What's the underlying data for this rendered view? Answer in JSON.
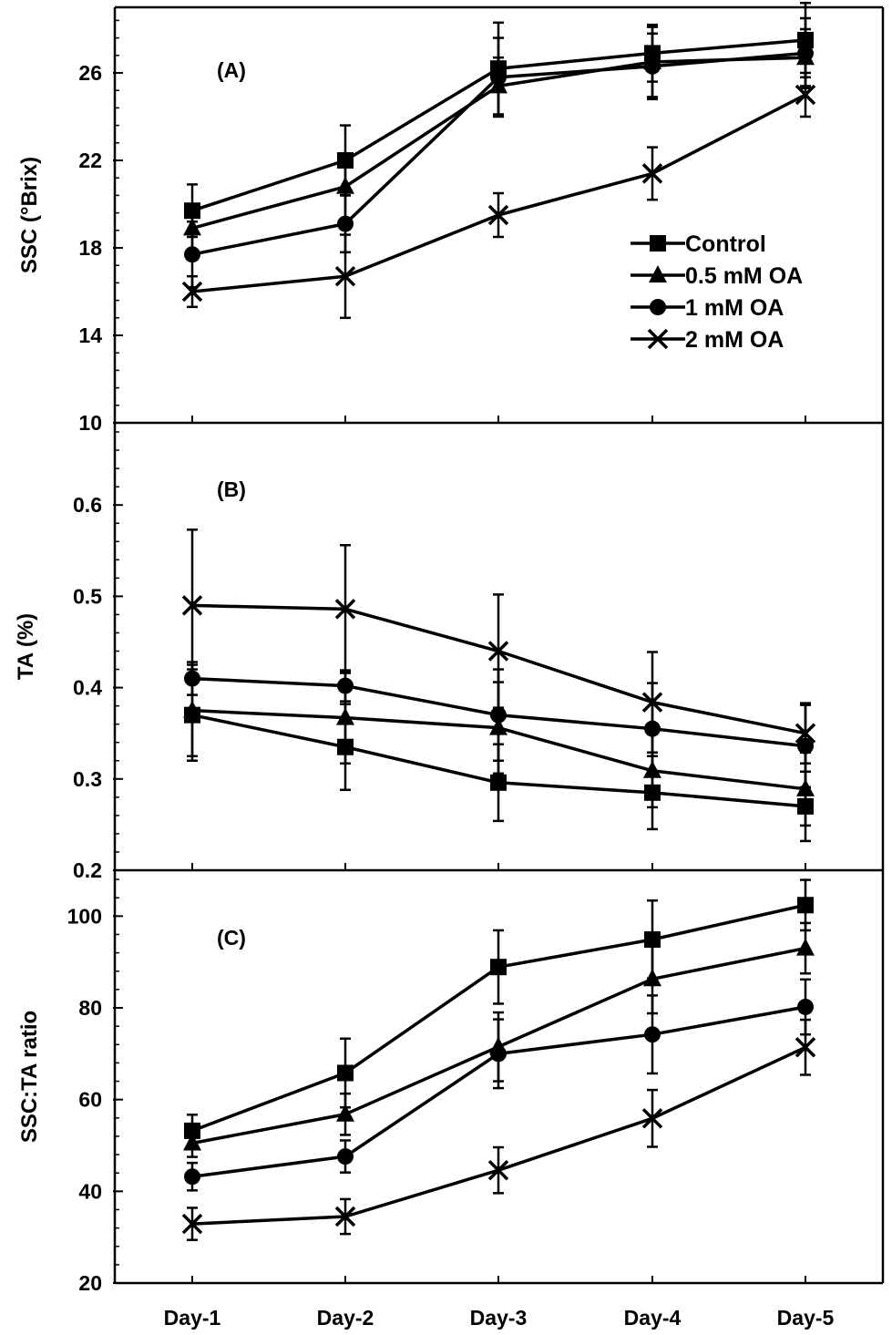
{
  "chart_data": [
    {
      "type": "line",
      "panel_label": "(A)",
      "ylabel": "SSC (°Brix)",
      "ylim": [
        10,
        29
      ],
      "yticks": [
        10,
        14,
        18,
        22,
        26
      ],
      "categories": [
        "Day-1",
        "Day-2",
        "Day-3",
        "Day-4",
        "Day-5"
      ],
      "legend_position": "right",
      "series": [
        {
          "name": "Control",
          "marker": "square",
          "values": [
            19.7,
            22.0,
            26.2,
            26.9,
            27.5
          ],
          "errors": [
            1.2,
            1.6,
            2.1,
            1.3,
            1.7
          ]
        },
        {
          "name": "0.5 mM OA",
          "marker": "triangle",
          "values": [
            18.9,
            20.8,
            25.4,
            26.5,
            26.7
          ],
          "errors": [
            1.1,
            1.5,
            1.3,
            1.6,
            1.3
          ]
        },
        {
          "name": "1 mM OA",
          "marker": "circle",
          "values": [
            17.7,
            19.1,
            25.8,
            26.3,
            26.9
          ],
          "errors": [
            1.5,
            1.3,
            1.8,
            1.5,
            1.6
          ]
        },
        {
          "name": "2 mM OA",
          "marker": "x",
          "values": [
            16.0,
            16.7,
            19.5,
            21.4,
            25.0
          ],
          "errors": [
            0.7,
            1.9,
            1.0,
            1.2,
            1.0
          ]
        }
      ]
    },
    {
      "type": "line",
      "panel_label": "(B)",
      "ylabel": "TA (%)",
      "ylim": [
        0.2,
        0.69
      ],
      "yticks": [
        0.2,
        0.3,
        0.4,
        0.5,
        0.6
      ],
      "categories": [
        "Day-1",
        "Day-2",
        "Day-3",
        "Day-4",
        "Day-5"
      ],
      "series": [
        {
          "name": "Control",
          "marker": "square",
          "values": [
            0.37,
            0.335,
            0.296,
            0.285,
            0.27
          ],
          "errors": [
            0.05,
            0.047,
            0.042,
            0.04,
            0.038
          ]
        },
        {
          "name": "0.5 mM OA",
          "marker": "triangle",
          "values": [
            0.375,
            0.367,
            0.356,
            0.309,
            0.289
          ],
          "errors": [
            0.05,
            0.05,
            0.05,
            0.04,
            0.04
          ]
        },
        {
          "name": "1 mM OA",
          "marker": "circle",
          "values": [
            0.41,
            0.402,
            0.37,
            0.355,
            0.336
          ],
          "errors": [
            0.018,
            0.017,
            0.05,
            0.05,
            0.045
          ]
        },
        {
          "name": "2 mM OA",
          "marker": "x",
          "values": [
            0.49,
            0.486,
            0.44,
            0.384,
            0.35
          ],
          "errors": [
            0.083,
            0.07,
            0.062,
            0.055,
            0.033
          ]
        }
      ]
    },
    {
      "type": "line",
      "panel_label": "(C)",
      "ylabel": "SSC:TA ratio",
      "ylim": [
        20,
        110
      ],
      "yticks": [
        20,
        40,
        60,
        80,
        100
      ],
      "categories": [
        "Day-1",
        "Day-2",
        "Day-3",
        "Day-4",
        "Day-5"
      ],
      "series": [
        {
          "name": "Control",
          "marker": "square",
          "values": [
            53.2,
            65.8,
            88.9,
            94.9,
            102.4
          ],
          "errors": [
            3.5,
            7.5,
            8.0,
            8.5,
            5.5
          ]
        },
        {
          "name": "0.5 mM OA",
          "marker": "triangle",
          "values": [
            50.5,
            56.8,
            71.5,
            86.3,
            93.0
          ],
          "errors": [
            3.0,
            4.5,
            7.5,
            7.5,
            5.5
          ]
        },
        {
          "name": "1 mM OA",
          "marker": "circle",
          "values": [
            43.2,
            47.6,
            70.0,
            74.2,
            80.2
          ],
          "errors": [
            3.0,
            3.5,
            7.5,
            8.5,
            6.0
          ]
        },
        {
          "name": "2 mM OA",
          "marker": "x",
          "values": [
            32.9,
            34.5,
            44.6,
            55.9,
            71.4
          ],
          "errors": [
            3.5,
            3.8,
            5.0,
            6.2,
            6.0
          ]
        }
      ]
    }
  ]
}
